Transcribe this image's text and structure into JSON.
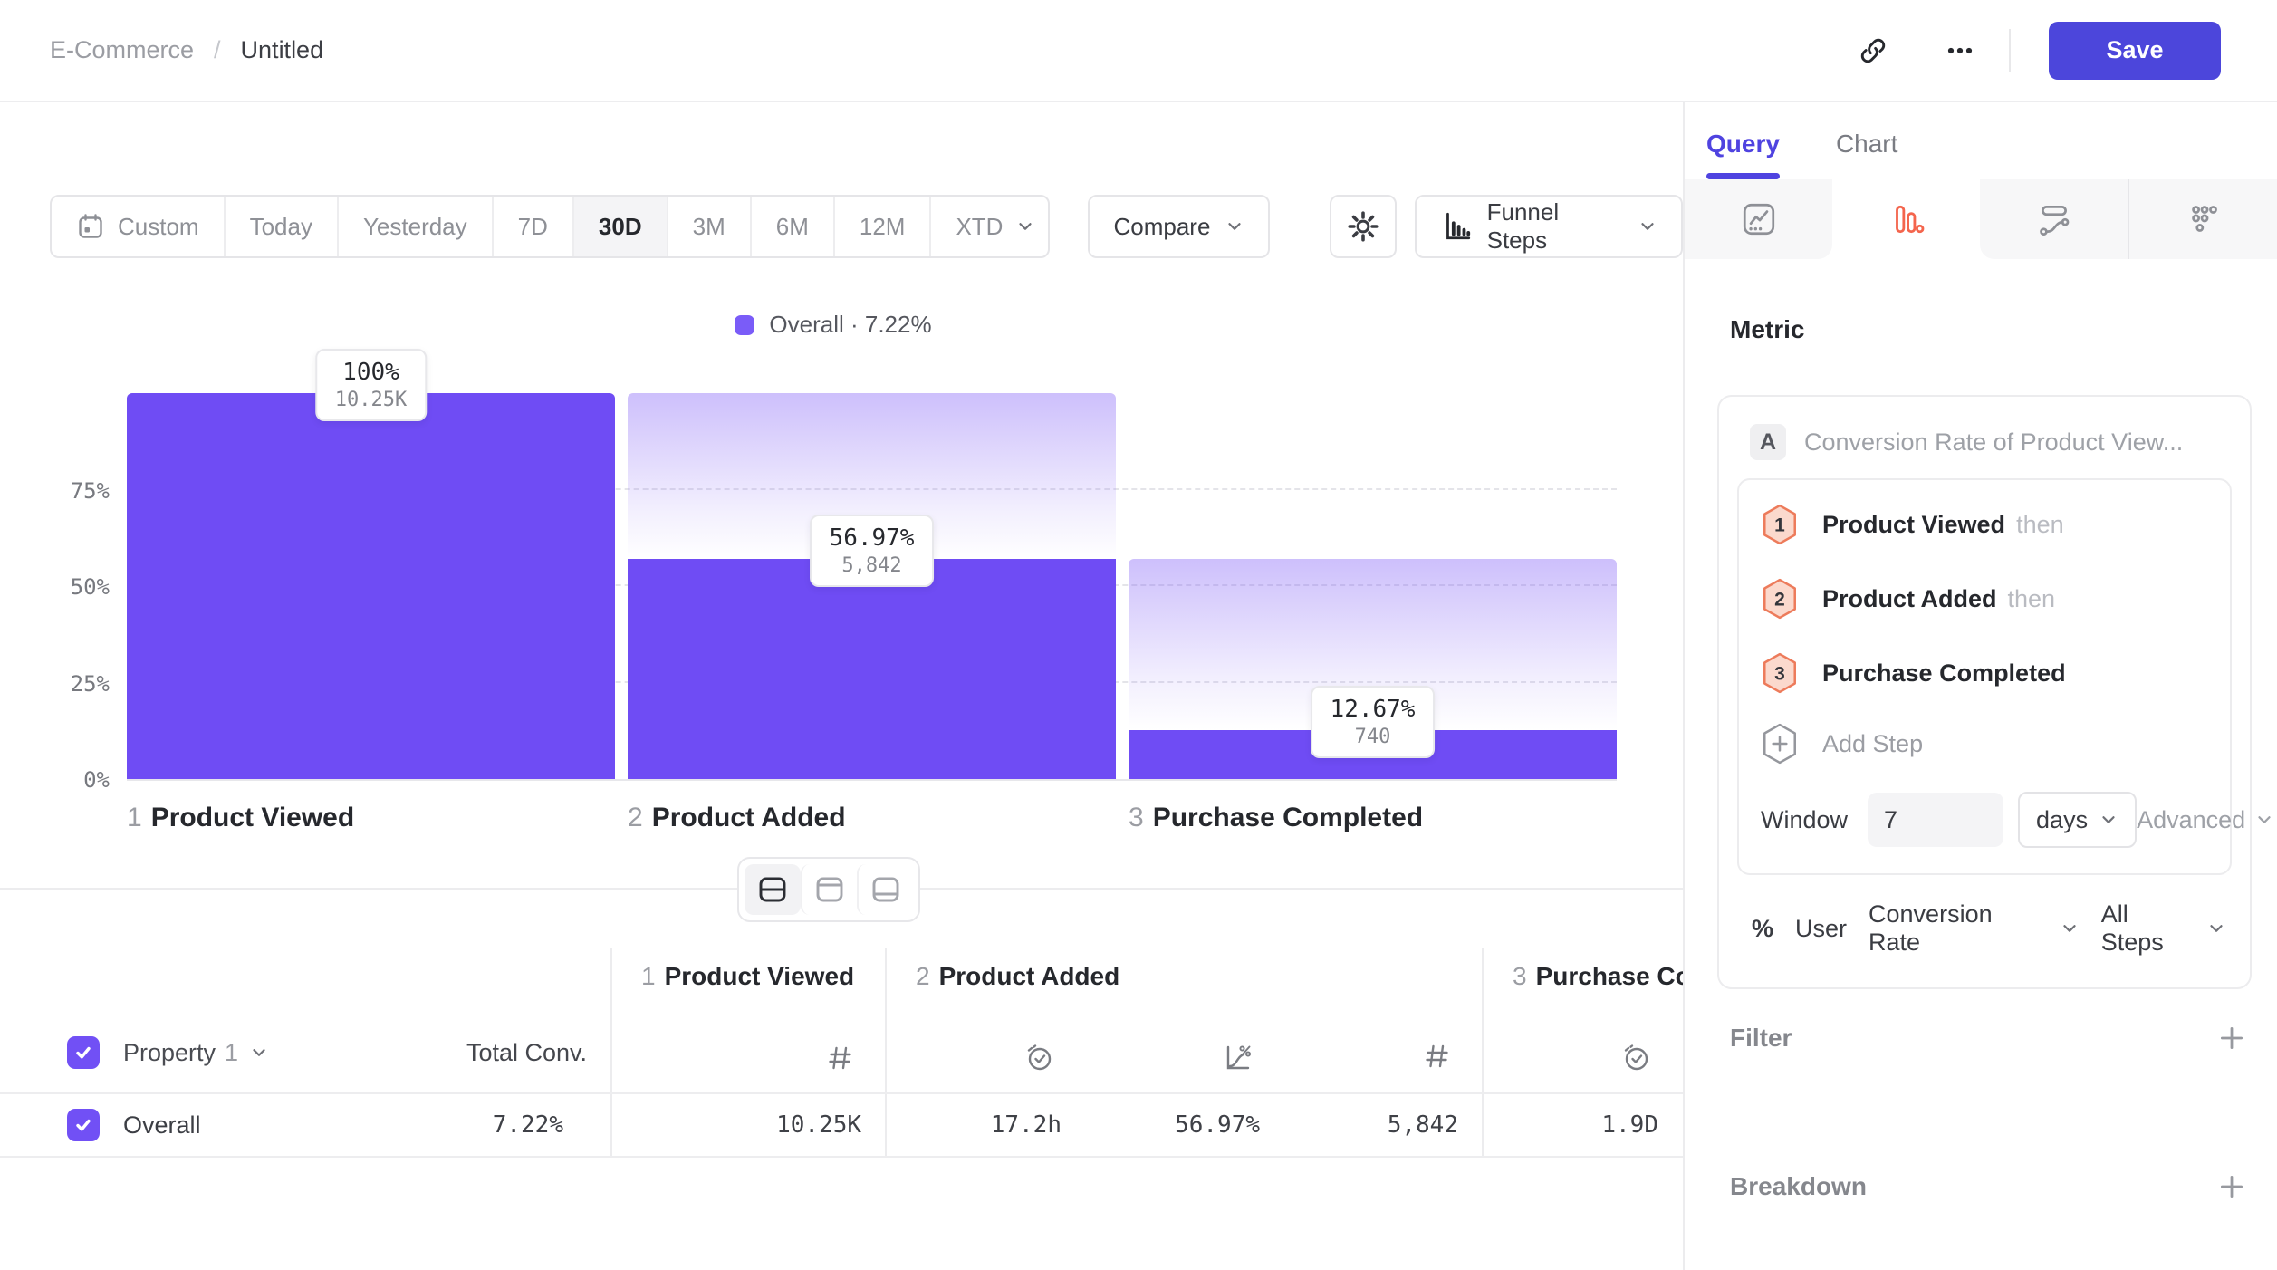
{
  "colors": {
    "accent_purple": "#6F4CF4",
    "legend_purple": "#7A5CF8",
    "save_indigo": "#4C46DB",
    "active_tab_purple": "#4F43E0",
    "funnel_icon_orange": "#F4654D",
    "step_badge_fill": "#FBD9CD",
    "step_badge_stroke": "#ED7B5B"
  },
  "header": {
    "breadcrumb": {
      "parent": "E-Commerce",
      "separator": "/",
      "current": "Untitled"
    },
    "save_label": "Save"
  },
  "toolbar": {
    "date_ranges": [
      "Custom",
      "Today",
      "Yesterday",
      "7D",
      "30D",
      "3M",
      "6M",
      "12M",
      "XTD"
    ],
    "active_range": "30D",
    "compare_label": "Compare",
    "chart_type_label": "Funnel Steps"
  },
  "chart_data": {
    "type": "funnel",
    "legend": "Overall · 7.22%",
    "y_ticks": [
      "75%",
      "50%",
      "25%",
      "0%"
    ],
    "ylim": [
      0,
      100
    ],
    "grid": "dashed-horizontal",
    "steps": [
      {
        "index": "1",
        "name": "Product Viewed",
        "pct": 100,
        "pct_label": "100%",
        "count": 10250,
        "count_label": "10.25K"
      },
      {
        "index": "2",
        "name": "Product Added",
        "pct": 56.97,
        "pct_label": "56.97%",
        "count": 5842,
        "count_label": "5,842"
      },
      {
        "index": "3",
        "name": "Purchase Completed",
        "pct": 12.67,
        "pct_label": "12.67%",
        "count": 740,
        "count_label": "740"
      }
    ]
  },
  "table": {
    "property": {
      "label": "Property",
      "index": "1"
    },
    "total_conv_header": "Total Conv.",
    "column_groups": [
      {
        "index": "1",
        "title": "Product Viewed"
      },
      {
        "index": "2",
        "title": "Product Added"
      },
      {
        "index": "3",
        "title": "Purchase Completed"
      }
    ],
    "row": {
      "label": "Overall",
      "total_conv": "7.22%",
      "step1_count": "10.25K",
      "step2_time": "17.2h",
      "step2_rate": "56.97%",
      "step2_count": "5,842",
      "step3_time": "1.9D"
    }
  },
  "sidebar": {
    "tabs": {
      "query": "Query",
      "chart": "Chart"
    },
    "metric_heading": "Metric",
    "metric": {
      "badge": "A",
      "title": "Conversion Rate of Product View...",
      "steps": [
        {
          "num": "1",
          "name": "Product Viewed",
          "suffix": "then"
        },
        {
          "num": "2",
          "name": "Product Added",
          "suffix": "then"
        },
        {
          "num": "3",
          "name": "Purchase Completed",
          "suffix": ""
        }
      ],
      "add_step_label": "Add Step",
      "window_label": "Window",
      "window_value": "7",
      "window_unit": "days",
      "advanced_label": "Advanced",
      "measured": {
        "symbol": "%",
        "user": "User",
        "metric": "Conversion Rate",
        "scope": "All Steps"
      }
    },
    "filter_label": "Filter",
    "breakdown_label": "Breakdown"
  }
}
